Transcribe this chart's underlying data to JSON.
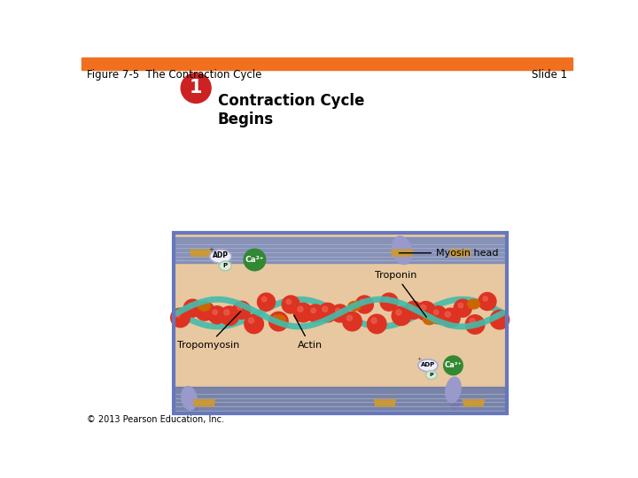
{
  "bg_color": "#ffffff",
  "header_bar_color": "#f07020",
  "header_text": "Figure 7-5  The Contraction Cycle",
  "header_text_color": "#000000",
  "slide_label": "Slide 1",
  "slide_label_color": "#000000",
  "title_number_bg": "#cc2222",
  "title_text": "Contraction Cycle\nBegins",
  "title_text_color": "#000000",
  "top_box_bg": "#ffffff",
  "top_box_border": "#aaaacc",
  "bottom_box_bg": "#e8c8a0",
  "bottom_box_border": "#6677bb",
  "stripe_top_color": "#7788bb",
  "stripe_bottom_color": "#6677aa",
  "actin_color": "#dd3322",
  "actin_shade": "#cc2211",
  "tropomyosin_color": "#44bbaa",
  "troponin_color": "#cc6600",
  "myosin_head_color": "#9999cc",
  "myosin_tail_color": "#8888bb",
  "adp_oval_color": "#eeeeff",
  "adp_border_color": "#aaaacc",
  "p_oval_color": "#ddeedd",
  "p_border_color": "#aaccaa",
  "ca_color": "#338833",
  "label_myosin_head": "Myosin head",
  "label_troponin": "Troponin",
  "label_tropomyosin": "Tropomyosin",
  "label_actin": "Actin",
  "label_adp": "ADP",
  "label_p": "P",
  "label_ca": "Ca²⁺",
  "footer_text": "© 2013 Pearson Education, Inc.",
  "footer_color": "#000000",
  "zigzag_color": "#cc9933"
}
